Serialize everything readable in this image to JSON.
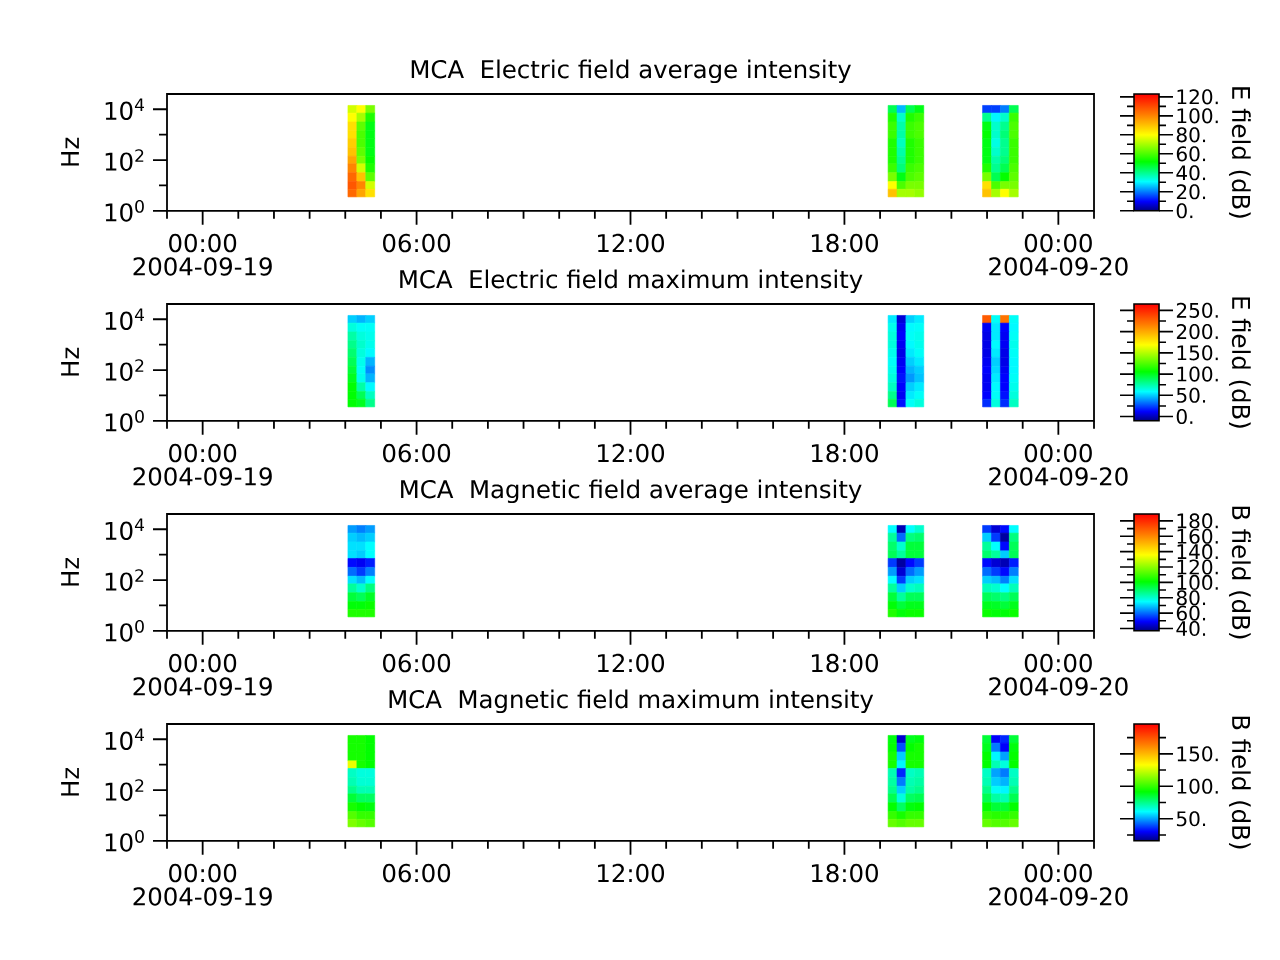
{
  "chart_data": [
    {
      "type": "heatmap",
      "title": "MCA  Electric field average intensity",
      "ylabel": "Hz",
      "clabel": "E field (dB)",
      "x": [
        4.2,
        4.45,
        4.7,
        4.95,
        19.1,
        19.35,
        19.6,
        19.85,
        20.1,
        20.35,
        21.75,
        22.0,
        22.25,
        22.5,
        22.75
      ],
      "y": [
        10000,
        5000,
        2000,
        1000,
        500,
        200,
        100,
        50,
        20,
        10,
        5
      ],
      "cells": [
        [
          75,
          80,
          65,
          null,
          null,
          45,
          25,
          45,
          50,
          null,
          null,
          15,
          15,
          20,
          45
        ],
        [
          80,
          70,
          55,
          null,
          null,
          55,
          35,
          55,
          58,
          null,
          null,
          40,
          30,
          35,
          58
        ],
        [
          85,
          62,
          50,
          null,
          null,
          58,
          38,
          58,
          60,
          null,
          null,
          50,
          35,
          40,
          60
        ],
        [
          85,
          60,
          50,
          null,
          null,
          58,
          38,
          58,
          60,
          null,
          null,
          52,
          35,
          42,
          60
        ],
        [
          88,
          60,
          50,
          null,
          null,
          55,
          36,
          55,
          58,
          null,
          null,
          50,
          33,
          40,
          58
        ],
        [
          90,
          62,
          50,
          null,
          null,
          55,
          38,
          55,
          58,
          null,
          null,
          50,
          35,
          40,
          58
        ],
        [
          95,
          65,
          52,
          null,
          null,
          55,
          40,
          55,
          58,
          null,
          null,
          50,
          38,
          42,
          58
        ],
        [
          100,
          75,
          55,
          null,
          null,
          58,
          42,
          58,
          60,
          null,
          null,
          55,
          40,
          45,
          60
        ],
        [
          105,
          90,
          62,
          null,
          null,
          65,
          50,
          60,
          62,
          null,
          null,
          65,
          45,
          52,
          62
        ],
        [
          108,
          100,
          75,
          null,
          null,
          80,
          60,
          65,
          65,
          null,
          null,
          85,
          60,
          65,
          65
        ],
        [
          105,
          95,
          85,
          null,
          null,
          90,
          70,
          70,
          68,
          null,
          null,
          90,
          70,
          80,
          70
        ]
      ],
      "xlim": [
        -1,
        25
      ],
      "xticks": [
        {
          "value": -1,
          "label": null
        },
        {
          "value": 0,
          "label": "00:00 2004-09-19"
        },
        {
          "value": 1,
          "label": null
        },
        {
          "value": 2,
          "label": null
        },
        {
          "value": 3,
          "label": null
        },
        {
          "value": 4,
          "label": null
        },
        {
          "value": 5,
          "label": null
        },
        {
          "value": 6,
          "label": "06:00"
        },
        {
          "value": 7,
          "label": null
        },
        {
          "value": 8,
          "label": null
        },
        {
          "value": 9,
          "label": null
        },
        {
          "value": 10,
          "label": null
        },
        {
          "value": 11,
          "label": null
        },
        {
          "value": 12,
          "label": "12:00"
        },
        {
          "value": 13,
          "label": null
        },
        {
          "value": 14,
          "label": null
        },
        {
          "value": 15,
          "label": null
        },
        {
          "value": 16,
          "label": null
        },
        {
          "value": 17,
          "label": null
        },
        {
          "value": 18,
          "label": "18:00"
        },
        {
          "value": 19,
          "label": null
        },
        {
          "value": 20,
          "label": null
        },
        {
          "value": 21,
          "label": null
        },
        {
          "value": 22,
          "label": null
        },
        {
          "value": 23,
          "label": null
        },
        {
          "value": 24,
          "label": "00:00 2004-09-20"
        },
        {
          "value": 25,
          "label": null
        }
      ],
      "ylim": [
        1,
        40000
      ],
      "yticks": [
        {
          "value": 1,
          "label": "10$^{0}$"
        },
        {
          "value": 10,
          "label": null
        },
        {
          "value": 100,
          "label": "10$^{2}$"
        },
        {
          "value": 1000,
          "label": null
        },
        {
          "value": 10000,
          "label": "10$^{4}$"
        }
      ],
      "log": "y",
      "clim": [
        0,
        123
      ],
      "cticks": [
        {
          "value": 0,
          "label": "0."
        },
        {
          "value": 10,
          "label": null
        },
        {
          "value": 20,
          "label": "20."
        },
        {
          "value": 30,
          "label": null
        },
        {
          "value": 40,
          "label": "40."
        },
        {
          "value": 50,
          "label": null
        },
        {
          "value": 60,
          "label": "60."
        },
        {
          "value": 70,
          "label": null
        },
        {
          "value": 80,
          "label": "80."
        },
        {
          "value": 90,
          "label": null
        },
        {
          "value": 100,
          "label": "100."
        },
        {
          "value": 110,
          "label": null
        },
        {
          "value": 120,
          "label": "120."
        }
      ]
    },
    {
      "type": "heatmap",
      "title": "MCA  Electric field maximum intensity",
      "ylabel": "Hz",
      "clabel": "E field (dB)",
      "x": [
        4.2,
        4.45,
        4.7,
        4.95,
        19.1,
        19.35,
        19.6,
        19.85,
        20.1,
        20.35,
        21.75,
        22.0,
        22.25,
        22.5,
        22.75
      ],
      "y": [
        10000,
        5000,
        2000,
        1000,
        500,
        200,
        100,
        50,
        20,
        10,
        5
      ],
      "cells": [
        [
          50,
          45,
          50,
          null,
          null,
          55,
          5,
          50,
          55,
          null,
          null,
          230,
          60,
          220,
          60
        ],
        [
          65,
          60,
          60,
          null,
          null,
          62,
          10,
          58,
          60,
          null,
          null,
          10,
          55,
          12,
          58
        ],
        [
          75,
          65,
          62,
          null,
          null,
          65,
          12,
          60,
          62,
          null,
          null,
          8,
          55,
          10,
          60
        ],
        [
          80,
          68,
          62,
          null,
          null,
          65,
          10,
          58,
          62,
          null,
          null,
          8,
          58,
          10,
          62
        ],
        [
          85,
          65,
          58,
          null,
          null,
          62,
          8,
          55,
          60,
          null,
          null,
          8,
          55,
          8,
          60
        ],
        [
          90,
          62,
          45,
          null,
          null,
          60,
          10,
          50,
          55,
          null,
          null,
          10,
          50,
          8,
          58
        ],
        [
          95,
          60,
          38,
          null,
          null,
          62,
          12,
          45,
          50,
          null,
          null,
          12,
          52,
          10,
          58
        ],
        [
          100,
          62,
          45,
          null,
          null,
          65,
          15,
          40,
          48,
          null,
          null,
          10,
          55,
          12,
          60
        ],
        [
          105,
          75,
          58,
          null,
          null,
          70,
          12,
          50,
          55,
          null,
          null,
          10,
          58,
          12,
          62
        ],
        [
          105,
          90,
          70,
          null,
          null,
          80,
          10,
          55,
          60,
          null,
          null,
          12,
          60,
          15,
          65
        ],
        [
          105,
          100,
          80,
          null,
          null,
          90,
          15,
          60,
          65,
          null,
          null,
          20,
          65,
          20,
          70
        ]
      ],
      "xlim": [
        -1,
        25
      ],
      "xticks": [
        {
          "value": -1,
          "label": null
        },
        {
          "value": 0,
          "label": "00:00 2004-09-19"
        },
        {
          "value": 1,
          "label": null
        },
        {
          "value": 2,
          "label": null
        },
        {
          "value": 3,
          "label": null
        },
        {
          "value": 4,
          "label": null
        },
        {
          "value": 5,
          "label": null
        },
        {
          "value": 6,
          "label": "06:00"
        },
        {
          "value": 7,
          "label": null
        },
        {
          "value": 8,
          "label": null
        },
        {
          "value": 9,
          "label": null
        },
        {
          "value": 10,
          "label": null
        },
        {
          "value": 11,
          "label": null
        },
        {
          "value": 12,
          "label": "12:00"
        },
        {
          "value": 13,
          "label": null
        },
        {
          "value": 14,
          "label": null
        },
        {
          "value": 15,
          "label": null
        },
        {
          "value": 16,
          "label": null
        },
        {
          "value": 17,
          "label": null
        },
        {
          "value": 18,
          "label": "18:00"
        },
        {
          "value": 19,
          "label": null
        },
        {
          "value": 20,
          "label": null
        },
        {
          "value": 21,
          "label": null
        },
        {
          "value": 22,
          "label": null
        },
        {
          "value": 23,
          "label": null
        },
        {
          "value": 24,
          "label": "00:00 2004-09-20"
        },
        {
          "value": 25,
          "label": null
        }
      ],
      "ylim": [
        1,
        40000
      ],
      "yticks": [
        {
          "value": 1,
          "label": "10$^{0}$"
        },
        {
          "value": 10,
          "label": null
        },
        {
          "value": 100,
          "label": "10$^{2}$"
        },
        {
          "value": 1000,
          "label": null
        },
        {
          "value": 10000,
          "label": "10$^{4}$"
        }
      ],
      "log": "y",
      "clim": [
        -10,
        265
      ],
      "cticks": [
        {
          "value": 0,
          "label": "0."
        },
        {
          "value": 25,
          "label": null
        },
        {
          "value": 50,
          "label": "50."
        },
        {
          "value": 75,
          "label": null
        },
        {
          "value": 100,
          "label": "100."
        },
        {
          "value": 125,
          "label": null
        },
        {
          "value": 150,
          "label": "150."
        },
        {
          "value": 175,
          "label": null
        },
        {
          "value": 200,
          "label": "200."
        },
        {
          "value": 225,
          "label": null
        },
        {
          "value": 250,
          "label": "250."
        }
      ]
    },
    {
      "type": "heatmap",
      "title": "MCA  Magnetic field average intensity",
      "ylabel": "Hz",
      "clabel": "B field (dB)",
      "x": [
        4.2,
        4.45,
        4.7,
        4.95,
        19.1,
        19.35,
        19.6,
        19.85,
        20.1,
        20.35,
        21.75,
        22.0,
        22.25,
        22.5,
        22.75
      ],
      "y": [
        10000,
        5000,
        2000,
        1000,
        500,
        200,
        100,
        50,
        20,
        10,
        5
      ],
      "cells": [
        [
          65,
          62,
          65,
          null,
          null,
          75,
          42,
          75,
          80,
          null,
          null,
          55,
          45,
          50,
          75
        ],
        [
          70,
          68,
          70,
          null,
          null,
          85,
          60,
          88,
          90,
          null,
          null,
          70,
          55,
          40,
          88
        ],
        [
          72,
          72,
          75,
          null,
          null,
          90,
          80,
          95,
          95,
          null,
          null,
          85,
          75,
          50,
          92
        ],
        [
          72,
          70,
          75,
          null,
          null,
          92,
          85,
          95,
          95,
          null,
          null,
          90,
          85,
          70,
          92
        ],
        [
          50,
          48,
          52,
          null,
          null,
          55,
          40,
          50,
          55,
          null,
          null,
          50,
          45,
          42,
          52
        ],
        [
          60,
          55,
          62,
          null,
          null,
          65,
          45,
          60,
          65,
          null,
          null,
          60,
          55,
          50,
          62
        ],
        [
          72,
          68,
          75,
          null,
          null,
          75,
          55,
          70,
          72,
          null,
          null,
          70,
          68,
          62,
          72
        ],
        [
          85,
          80,
          88,
          null,
          null,
          85,
          70,
          80,
          82,
          null,
          null,
          82,
          80,
          75,
          82
        ],
        [
          95,
          92,
          97,
          null,
          null,
          95,
          85,
          92,
          92,
          null,
          null,
          92,
          90,
          88,
          92
        ],
        [
          100,
          100,
          102,
          null,
          null,
          100,
          95,
          98,
          98,
          null,
          null,
          98,
          97,
          95,
          98
        ],
        [
          105,
          105,
          105,
          null,
          null,
          105,
          100,
          102,
          102,
          null,
          null,
          102,
          100,
          100,
          102
        ]
      ],
      "xlim": [
        -1,
        25
      ],
      "xticks": [
        {
          "value": -1,
          "label": null
        },
        {
          "value": 0,
          "label": "00:00 2004-09-19"
        },
        {
          "value": 1,
          "label": null
        },
        {
          "value": 2,
          "label": null
        },
        {
          "value": 3,
          "label": null
        },
        {
          "value": 4,
          "label": null
        },
        {
          "value": 5,
          "label": null
        },
        {
          "value": 6,
          "label": "06:00"
        },
        {
          "value": 7,
          "label": null
        },
        {
          "value": 8,
          "label": null
        },
        {
          "value": 9,
          "label": null
        },
        {
          "value": 10,
          "label": null
        },
        {
          "value": 11,
          "label": null
        },
        {
          "value": 12,
          "label": "12:00"
        },
        {
          "value": 13,
          "label": null
        },
        {
          "value": 14,
          "label": null
        },
        {
          "value": 15,
          "label": null
        },
        {
          "value": 16,
          "label": null
        },
        {
          "value": 17,
          "label": null
        },
        {
          "value": 18,
          "label": "18:00"
        },
        {
          "value": 19,
          "label": null
        },
        {
          "value": 20,
          "label": null
        },
        {
          "value": 21,
          "label": null
        },
        {
          "value": 22,
          "label": null
        },
        {
          "value": 23,
          "label": null
        },
        {
          "value": 24,
          "label": "00:00 2004-09-20"
        },
        {
          "value": 25,
          "label": null
        }
      ],
      "ylim": [
        1,
        40000
      ],
      "yticks": [
        {
          "value": 1,
          "label": "10$^{0}$"
        },
        {
          "value": 10,
          "label": null
        },
        {
          "value": 100,
          "label": "10$^{2}$"
        },
        {
          "value": 1000,
          "label": null
        },
        {
          "value": 10000,
          "label": "10$^{4}$"
        }
      ],
      "log": "y",
      "clim": [
        37,
        189
      ],
      "cticks": [
        {
          "value": 40,
          "label": "40."
        },
        {
          "value": 50,
          "label": null
        },
        {
          "value": 60,
          "label": "60."
        },
        {
          "value": 70,
          "label": null
        },
        {
          "value": 80,
          "label": "80."
        },
        {
          "value": 90,
          "label": null
        },
        {
          "value": 100,
          "label": "100."
        },
        {
          "value": 110,
          "label": null
        },
        {
          "value": 120,
          "label": "120."
        },
        {
          "value": 130,
          "label": null
        },
        {
          "value": 140,
          "label": "140."
        },
        {
          "value": 150,
          "label": null
        },
        {
          "value": 160,
          "label": "160."
        },
        {
          "value": 170,
          "label": null
        },
        {
          "value": 180,
          "label": "180."
        }
      ]
    },
    {
      "type": "heatmap",
      "title": "MCA  Magnetic field maximum intensity",
      "ylabel": "Hz",
      "clabel": "B field (dB)",
      "x": [
        4.2,
        4.45,
        4.7,
        4.95,
        19.1,
        19.35,
        19.6,
        19.85,
        20.1,
        20.35,
        21.75,
        22.0,
        22.25,
        22.5,
        22.75
      ],
      "y": [
        10000,
        5000,
        2000,
        1000,
        500,
        200,
        100,
        50,
        20,
        10,
        5
      ],
      "cells": [
        [
          95,
          95,
          92,
          null,
          null,
          90,
          25,
          88,
          90,
          null,
          null,
          85,
          30,
          35,
          85
        ],
        [
          95,
          95,
          92,
          null,
          null,
          92,
          40,
          92,
          95,
          null,
          null,
          88,
          45,
          30,
          90
        ],
        [
          95,
          95,
          92,
          null,
          null,
          95,
          55,
          95,
          95,
          null,
          null,
          92,
          60,
          50,
          92
        ],
        [
          130,
          95,
          92,
          null,
          null,
          95,
          60,
          95,
          95,
          null,
          null,
          92,
          70,
          65,
          92
        ],
        [
          68,
          65,
          65,
          null,
          null,
          70,
          35,
          68,
          70,
          null,
          null,
          68,
          50,
          45,
          68
        ],
        [
          70,
          66,
          66,
          null,
          null,
          72,
          45,
          70,
          72,
          null,
          null,
          70,
          55,
          52,
          70
        ],
        [
          75,
          70,
          70,
          null,
          null,
          75,
          55,
          72,
          75,
          null,
          null,
          75,
          62,
          60,
          75
        ],
        [
          85,
          80,
          80,
          null,
          null,
          82,
          65,
          80,
          82,
          null,
          null,
          82,
          72,
          70,
          82
        ],
        [
          95,
          92,
          90,
          null,
          null,
          92,
          80,
          90,
          92,
          null,
          null,
          92,
          85,
          85,
          92
        ],
        [
          105,
          100,
          100,
          null,
          null,
          100,
          95,
          100,
          100,
          null,
          null,
          100,
          98,
          98,
          100
        ],
        [
          112,
          108,
          105,
          null,
          null,
          108,
          105,
          108,
          108,
          null,
          null,
          108,
          105,
          105,
          108
        ]
      ],
      "xlim": [
        -1,
        25
      ],
      "xticks": [
        {
          "value": -1,
          "label": null
        },
        {
          "value": 0,
          "label": "00:00 2004-09-19"
        },
        {
          "value": 1,
          "label": null
        },
        {
          "value": 2,
          "label": null
        },
        {
          "value": 3,
          "label": null
        },
        {
          "value": 4,
          "label": null
        },
        {
          "value": 5,
          "label": null
        },
        {
          "value": 6,
          "label": "06:00"
        },
        {
          "value": 7,
          "label": null
        },
        {
          "value": 8,
          "label": null
        },
        {
          "value": 9,
          "label": null
        },
        {
          "value": 10,
          "label": null
        },
        {
          "value": 11,
          "label": null
        },
        {
          "value": 12,
          "label": "12:00"
        },
        {
          "value": 13,
          "label": null
        },
        {
          "value": 14,
          "label": null
        },
        {
          "value": 15,
          "label": null
        },
        {
          "value": 16,
          "label": null
        },
        {
          "value": 17,
          "label": null
        },
        {
          "value": 18,
          "label": "18:00"
        },
        {
          "value": 19,
          "label": null
        },
        {
          "value": 20,
          "label": null
        },
        {
          "value": 21,
          "label": null
        },
        {
          "value": 22,
          "label": null
        },
        {
          "value": 23,
          "label": null
        },
        {
          "value": 24,
          "label": "00:00 2004-09-20"
        },
        {
          "value": 25,
          "label": null
        }
      ],
      "ylim": [
        1,
        40000
      ],
      "yticks": [
        {
          "value": 1,
          "label": "10$^{0}$"
        },
        {
          "value": 10,
          "label": null
        },
        {
          "value": 100,
          "label": "10$^{2}$"
        },
        {
          "value": 1000,
          "label": null
        },
        {
          "value": 10000,
          "label": "10$^{4}$"
        }
      ],
      "log": "y",
      "clim": [
        16,
        196
      ],
      "cticks": [
        {
          "value": 25,
          "label": null
        },
        {
          "value": 50,
          "label": "50."
        },
        {
          "value": 75,
          "label": null
        },
        {
          "value": 100,
          "label": "100."
        },
        {
          "value": 125,
          "label": null
        },
        {
          "value": 150,
          "label": "150."
        },
        {
          "value": 175,
          "label": null
        }
      ]
    }
  ]
}
